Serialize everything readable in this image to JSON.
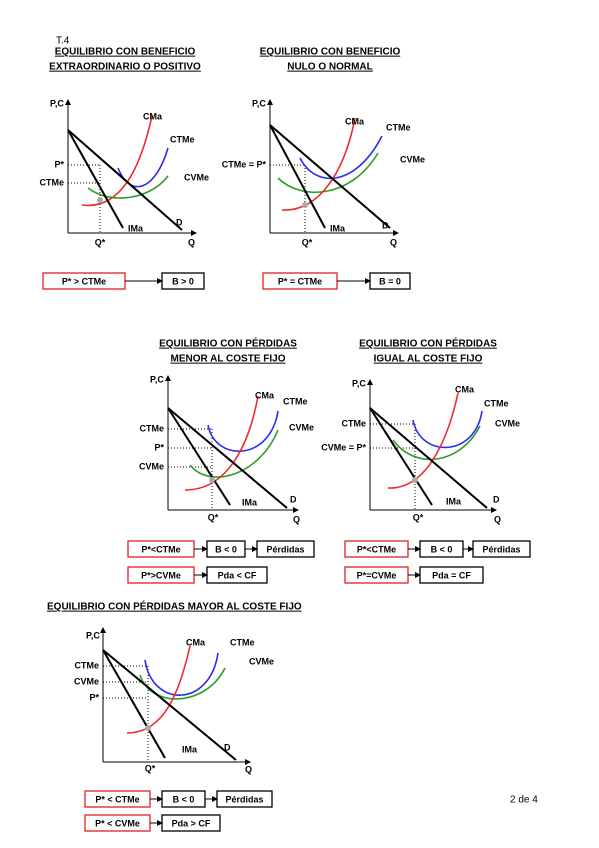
{
  "header": {
    "code": "T.4"
  },
  "panels": [
    {
      "title": [
        "EQUILIBRIO CON BENEFICIO",
        "EXTRAORDINARIO O POSITIVO"
      ],
      "axis": {
        "y": "P,C",
        "x": "Q"
      },
      "curves": {
        "cma": "CMa",
        "ctme": "CTMe",
        "cvme": "CVMe",
        "ima": "IMa",
        "d": "D"
      },
      "levels": [
        "P*",
        "CTMe"
      ],
      "quantity": "Q*",
      "rows": [
        [
          "P* > CTMe",
          "B > 0"
        ]
      ]
    },
    {
      "title": [
        "EQUILIBRIO CON BENEFICIO",
        "NULO O NORMAL"
      ],
      "axis": {
        "y": "P,C",
        "x": "Q"
      },
      "curves": {
        "cma": "CMa",
        "ctme": "CTMe",
        "cvme": "CVMe",
        "ima": "IMa",
        "d": "D"
      },
      "levels": [
        "CTMe = P*"
      ],
      "quantity": "Q*",
      "rows": [
        [
          "P* = CTMe",
          "B = 0"
        ]
      ]
    },
    {
      "title": [
        "EQUILIBRIO CON PÉRDIDAS",
        "MENOR AL COSTE FIJO"
      ],
      "axis": {
        "y": "P,C",
        "x": "Q"
      },
      "curves": {
        "cma": "CMa",
        "ctme": "CTMe",
        "cvme": "CVMe",
        "ima": "IMa",
        "d": "D"
      },
      "levels": [
        "CTMe",
        "P*",
        "CVMe"
      ],
      "quantity": "Q*",
      "rows": [
        [
          "P*<CTMe",
          "B < 0",
          "Pérdidas"
        ],
        [
          "P*>CVMe",
          "Pda < CF"
        ]
      ]
    },
    {
      "title": [
        "EQUILIBRIO CON PÉRDIDAS",
        "IGUAL AL COSTE FIJO"
      ],
      "axis": {
        "y": "P,C",
        "x": "Q"
      },
      "curves": {
        "cma": "CMa",
        "ctme": "CTMe",
        "cvme": "CVMe",
        "ima": "IMa",
        "d": "D"
      },
      "levels": [
        "CTMe",
        "CVMe = P*"
      ],
      "quantity": "Q*",
      "rows": [
        [
          "P*<CTMe",
          "B < 0",
          "Pérdidas"
        ],
        [
          "P*=CVMe",
          "Pda = CF"
        ]
      ]
    },
    {
      "title": [
        "EQUILIBRIO CON PÉRDIDAS MAYOR AL COSTE FIJO"
      ],
      "axis": {
        "y": "P,C",
        "x": "Q"
      },
      "curves": {
        "cma": "CMa",
        "ctme": "CTMe",
        "cvme": "CVMe",
        "ima": "IMa",
        "d": "D"
      },
      "levels": [
        "CTMe",
        "CVMe",
        "P*"
      ],
      "quantity": "Q*",
      "rows": [
        [
          "P* < CTMe",
          "B < 0",
          "Pérdidas"
        ],
        [
          "P* < CVMe",
          "Pda > CF"
        ]
      ]
    }
  ],
  "footer": {
    "page": "2 de 4"
  }
}
